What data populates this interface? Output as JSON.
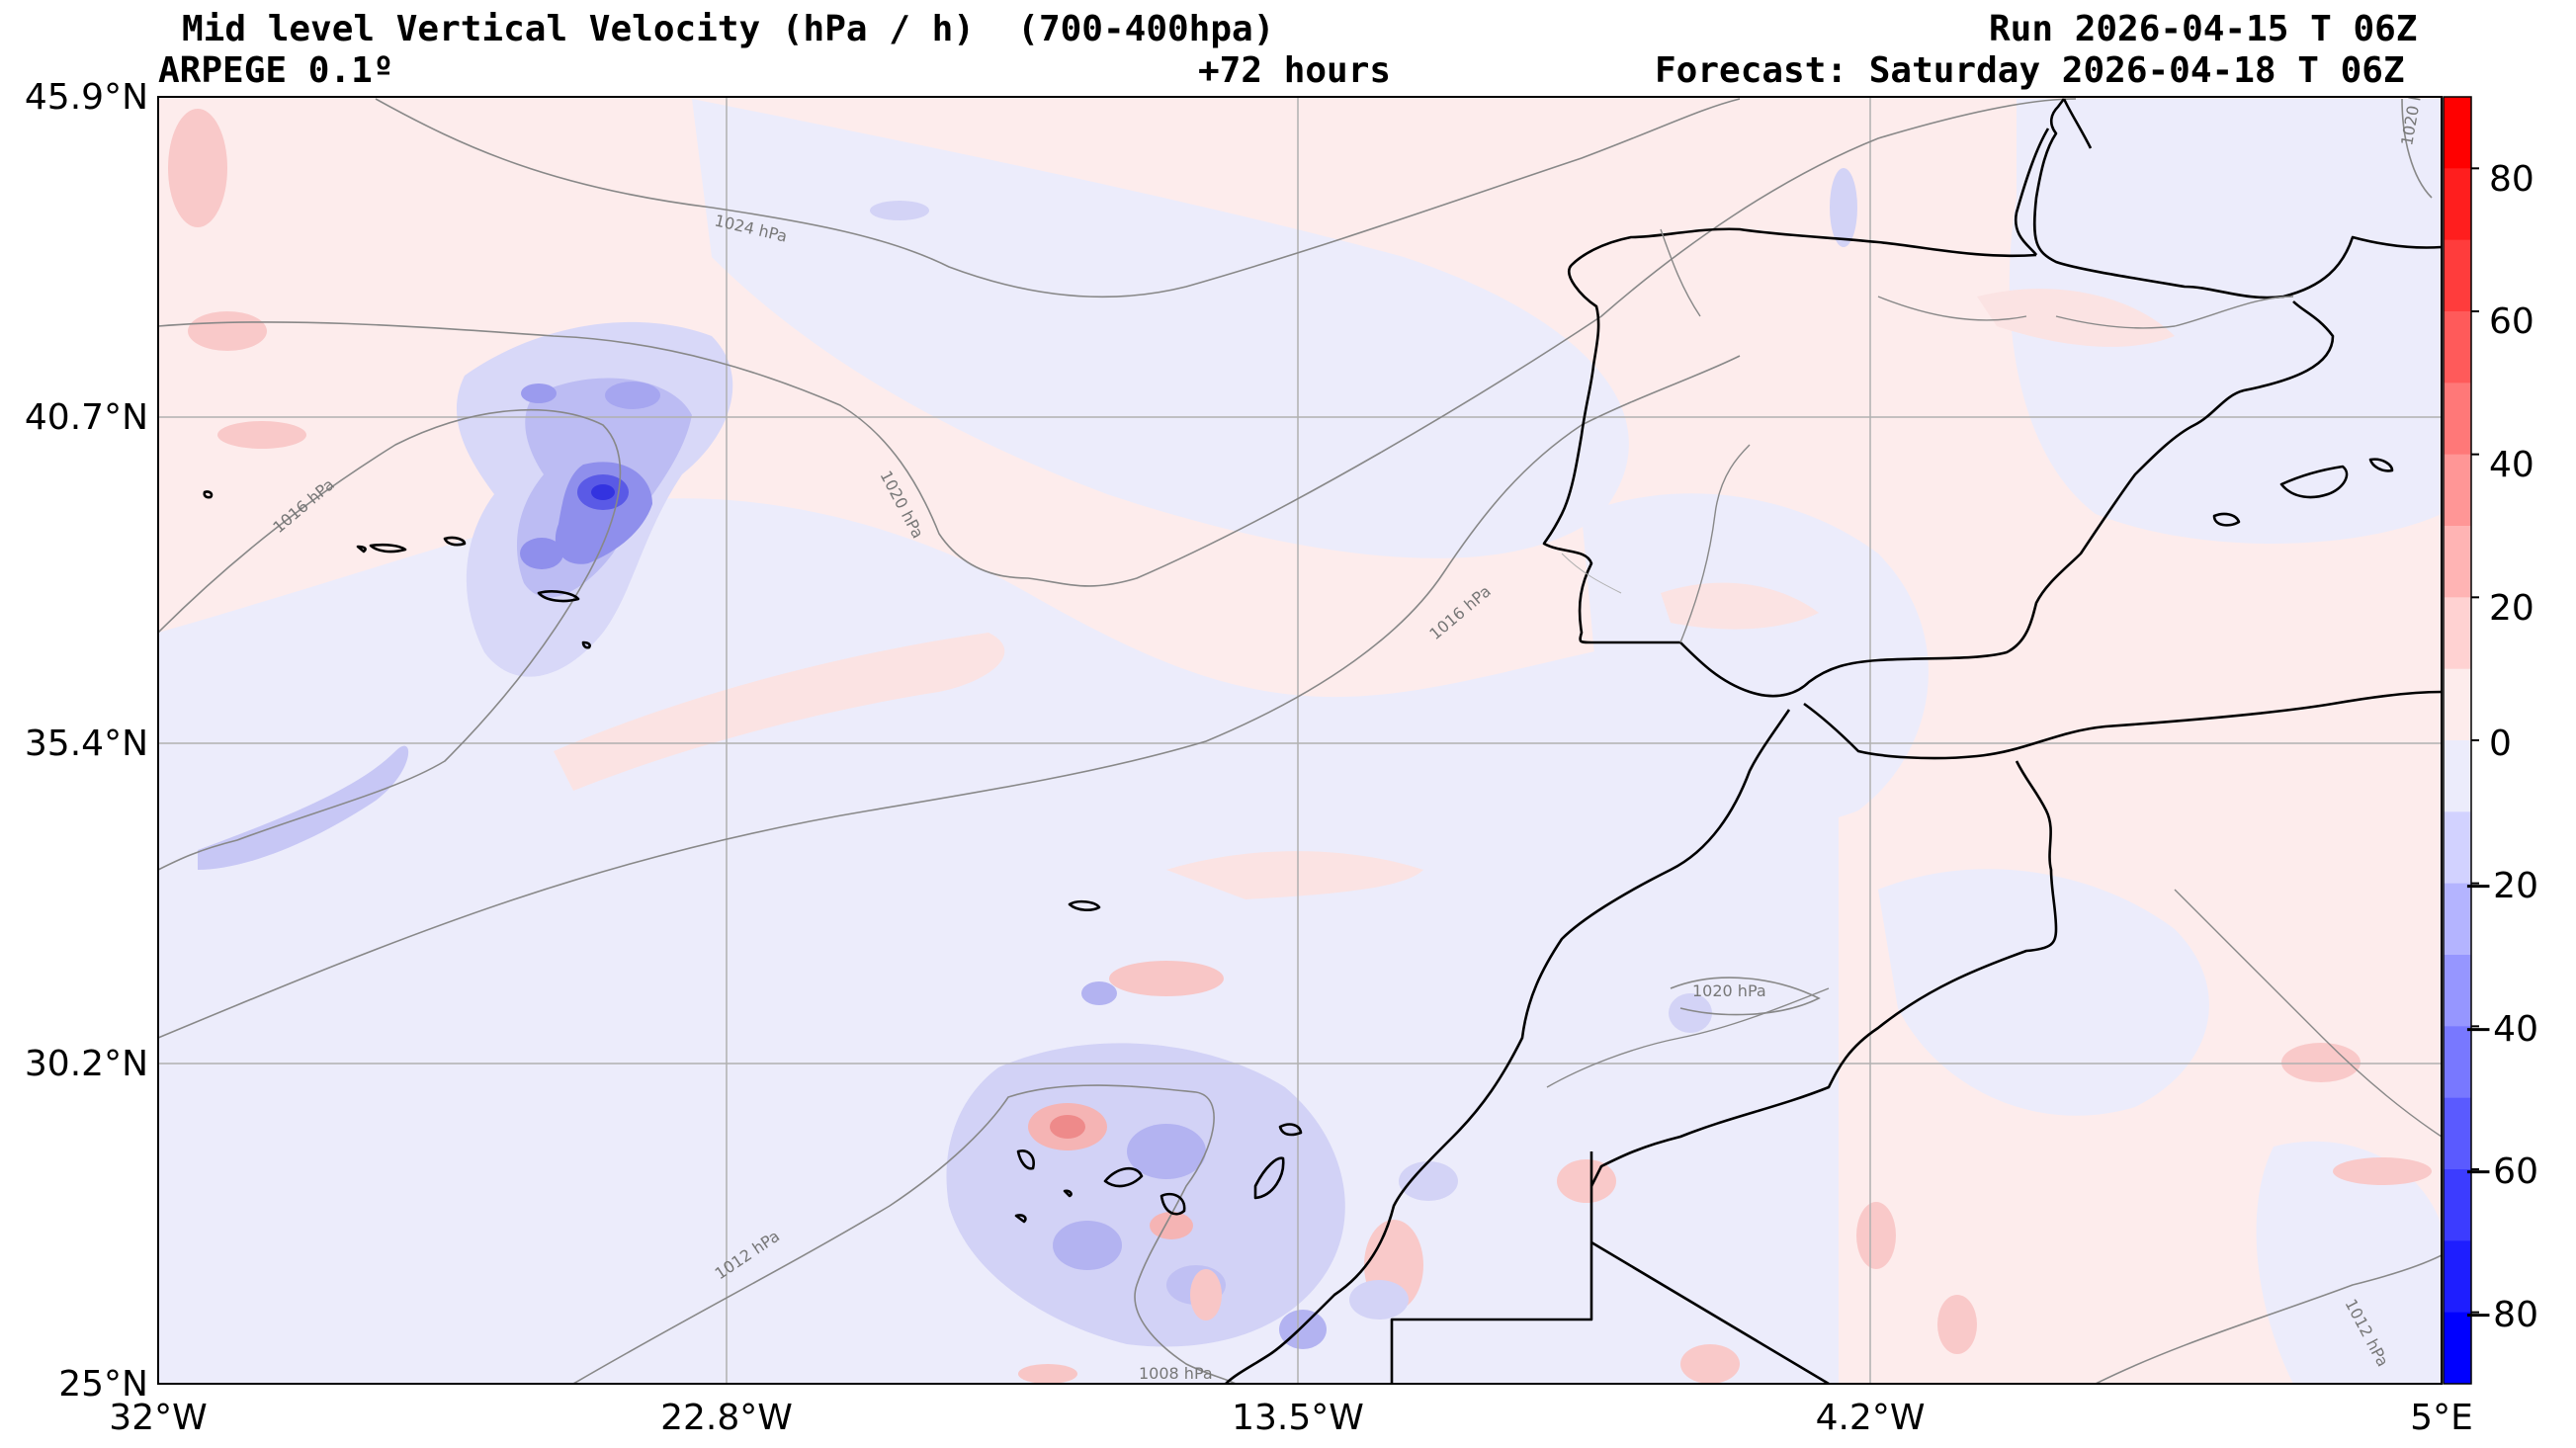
{
  "header": {
    "title": "Mid level Vertical Velocity (hPa / h)  (700-400hpa)",
    "model": "ARPEGE 0.1º",
    "lead": "+72 hours",
    "run": "Run 2026-04-15 T 06Z",
    "forecast": "Forecast: Saturday 2026-04-18 T 06Z"
  },
  "axes": {
    "lat_ticks": [
      "45.9°N",
      "40.7°N",
      "35.4°N",
      "30.2°N",
      "25°N"
    ],
    "lon_ticks": [
      "32°W",
      "22.8°W",
      "13.5°W",
      "4.2°W",
      "5°E"
    ],
    "lat_values": [
      45.9,
      40.7,
      35.4,
      30.2,
      25.0
    ],
    "lon_values": [
      -32,
      -22.8,
      -13.5,
      -4.2,
      5
    ]
  },
  "colorbar": {
    "tick_labels": [
      "80",
      "60",
      "40",
      "20",
      "0",
      "−20",
      "−40",
      "−60",
      "−80"
    ],
    "tick_values": [
      80,
      60,
      40,
      20,
      0,
      -20,
      -40,
      -60,
      -80
    ],
    "range": [
      -90,
      90
    ],
    "positive_color": "#ff0000",
    "negative_color": "#0000ff",
    "neutral_color": "#ffffff"
  },
  "isobars": [
    {
      "label": "1024 hPa"
    },
    {
      "label": "1020 hPa"
    },
    {
      "label": "1016 hPa"
    },
    {
      "label": "1016 hPa"
    },
    {
      "label": "1012 hPa"
    },
    {
      "label": "1012 hPa"
    },
    {
      "label": "1008 hPa"
    },
    {
      "label": "1020 hPa"
    },
    {
      "label": "1020 hPa"
    }
  ],
  "colors": {
    "ascent_fill": "#e9e9fb",
    "descent_fill": "#fdecec",
    "isobar": "#888888",
    "grid": "#b0b0b0",
    "coast": "#000000"
  }
}
